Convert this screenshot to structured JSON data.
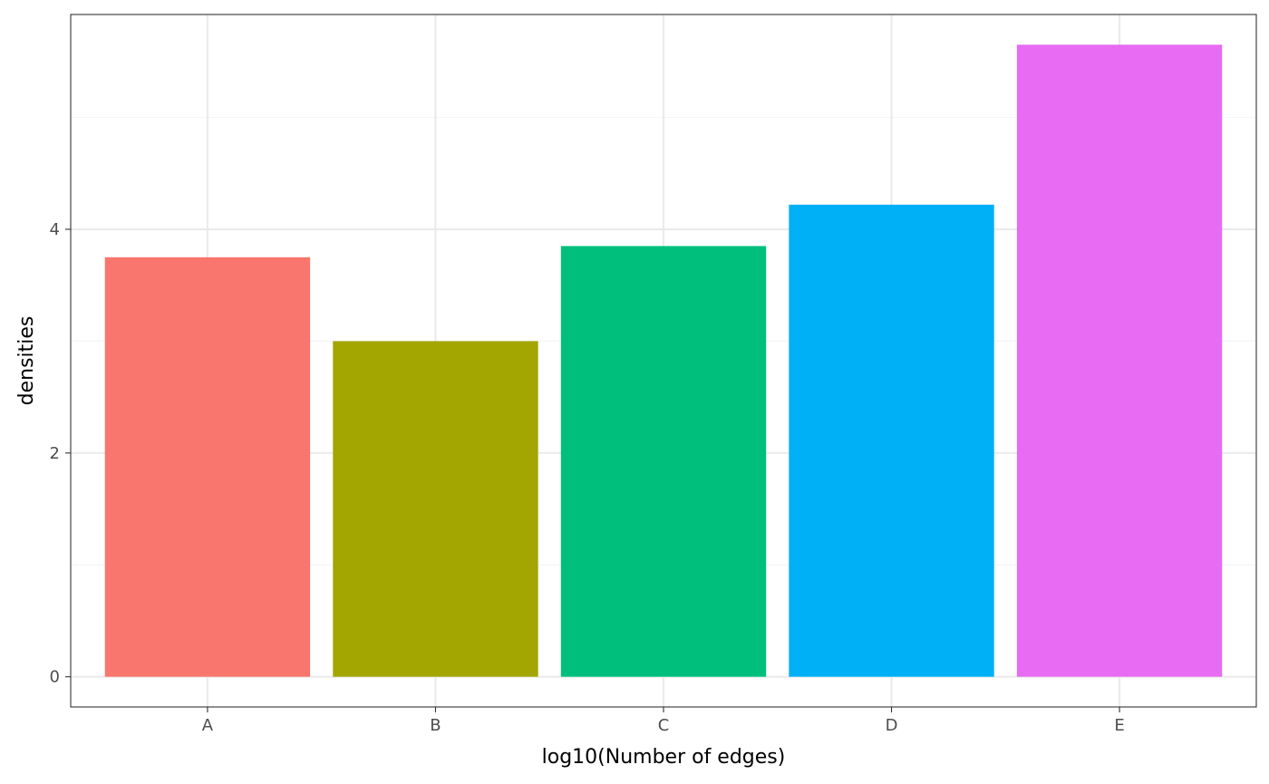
{
  "chart_data": {
    "type": "bar",
    "title": "",
    "xlabel": "log10(Number of edges)",
    "ylabel": "densities",
    "categories": [
      "A",
      "B",
      "C",
      "D",
      "E"
    ],
    "values": [
      3.75,
      3.0,
      3.85,
      4.22,
      5.65
    ],
    "colors": [
      "#F8766D",
      "#A3A500",
      "#00BF7D",
      "#00B0F6",
      "#E76BF3"
    ],
    "ylim": [
      -0.27,
      5.92
    ],
    "yticks": [
      0,
      2,
      4
    ],
    "y_minor_gridlines": [
      1,
      3,
      5
    ],
    "grid": true,
    "theme": "bw",
    "legend": "none",
    "colors_style": {
      "panel_border": "#333333",
      "grid_major": "#ebebeb",
      "grid_minor": "#f5f5f5",
      "tick": "#333333"
    }
  }
}
